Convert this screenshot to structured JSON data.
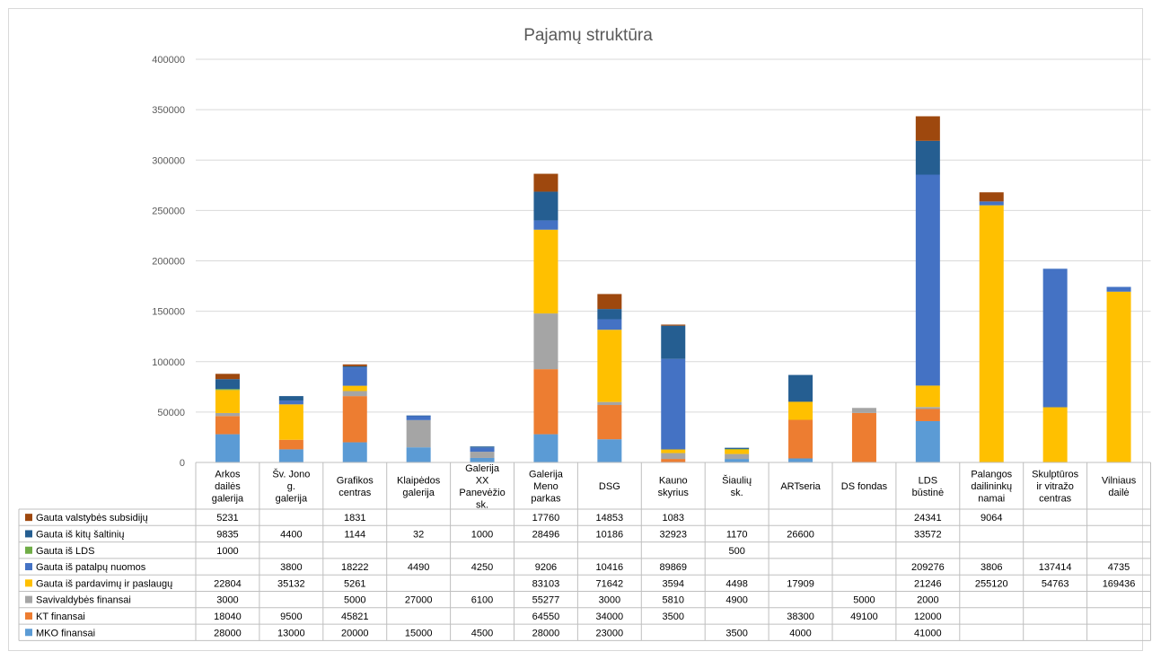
{
  "chart_data": {
    "type": "bar",
    "stacked": true,
    "title": "Pajamų struktūra",
    "ylim": [
      0,
      400000
    ],
    "yticks": [
      0,
      50000,
      100000,
      150000,
      200000,
      250000,
      300000,
      350000,
      400000
    ],
    "grid": true,
    "legend_placement": "data-table-left",
    "categories": [
      "Arkos dailės galerija",
      "Šv. Jono g. galerija",
      "Grafikos centras",
      "Klaipėdos galerija",
      "Galerija XX Panevėžio sk.",
      "Galerija Meno parkas",
      "DSG",
      "Kauno skyrius",
      "Šiaulių sk.",
      "ARTseria",
      "DS fondas",
      "LDS būstinė",
      "Palangos dailininkų namai",
      "Skulptūros ir vitražo centras",
      "Vilniaus dailė"
    ],
    "series": [
      {
        "name": "MKO finansai",
        "color": "#5b9bd5",
        "values": [
          28000,
          13000,
          20000,
          15000,
          4500,
          28000,
          23000,
          null,
          3500,
          4000,
          null,
          41000,
          null,
          null,
          null
        ]
      },
      {
        "name": "KT finansai",
        "color": "#ed7d31",
        "values": [
          18040,
          9500,
          45821,
          null,
          null,
          64550,
          34000,
          3500,
          null,
          38300,
          49100,
          12000,
          null,
          null,
          null
        ]
      },
      {
        "name": "Savivaldybės finansai",
        "color": "#a5a5a5",
        "values": [
          3000,
          null,
          5000,
          27000,
          6100,
          55277,
          3000,
          5810,
          4900,
          null,
          5000,
          2000,
          null,
          null,
          null
        ]
      },
      {
        "name": "Gauta iš pardavimų ir paslaugų",
        "color": "#ffc000",
        "values": [
          22804,
          35132,
          5261,
          null,
          null,
          83103,
          71642,
          3594,
          4498,
          17909,
          null,
          21246,
          255120,
          54763,
          169436
        ]
      },
      {
        "name": "Gauta iš patalpų nuomos",
        "color": "#4472c4",
        "values": [
          null,
          3800,
          18222,
          4490,
          4250,
          9206,
          10416,
          89869,
          null,
          null,
          null,
          209276,
          3806,
          137414,
          4735
        ]
      },
      {
        "name": "Gauta iš LDS",
        "color": "#70ad47",
        "values": [
          1000,
          null,
          null,
          null,
          null,
          null,
          null,
          null,
          500,
          null,
          null,
          null,
          null,
          null,
          null
        ]
      },
      {
        "name": "Gauta iš kitų šaltinių",
        "color": "#255e91",
        "values": [
          9835,
          4400,
          1144,
          32,
          1000,
          28496,
          10186,
          32923,
          1170,
          26600,
          null,
          33572,
          null,
          null,
          null
        ]
      },
      {
        "name": "Gauta valstybės subsidijų",
        "color": "#9e480e",
        "values": [
          5231,
          null,
          1831,
          null,
          null,
          17760,
          14853,
          1083,
          null,
          null,
          null,
          24341,
          9064,
          null,
          null
        ]
      }
    ]
  }
}
